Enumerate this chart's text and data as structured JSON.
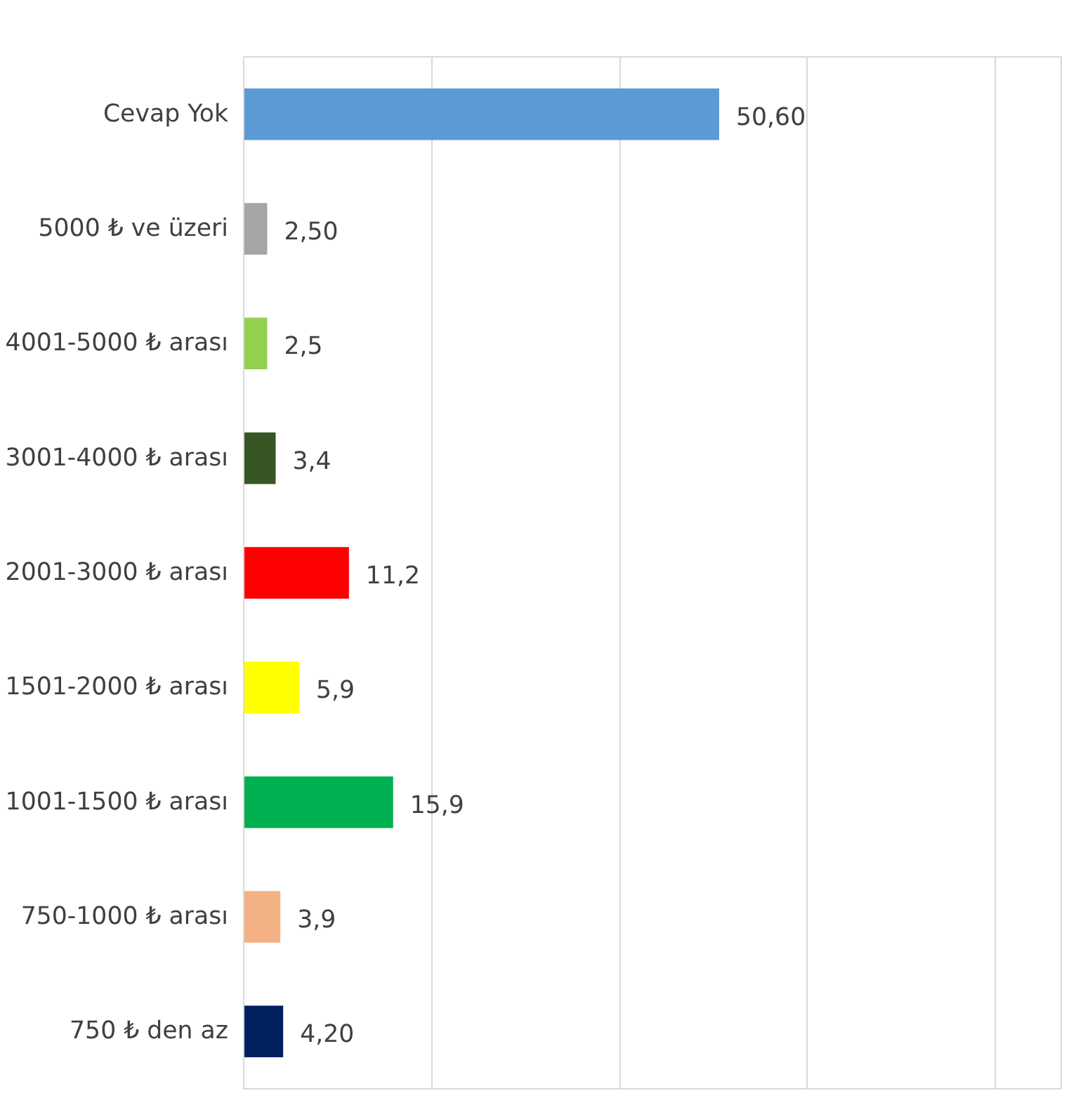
{
  "chart_data": {
    "type": "bar",
    "orientation": "horizontal",
    "categories": [
      "Cevap Yok",
      "5000 ₺ ve üzeri",
      "4001-5000 ₺ arası",
      "3001-4000 ₺ arası",
      "2001-3000 ₺ arası",
      "1501-2000 ₺ arası",
      "1001-1500 ₺ arası",
      "750-1000 ₺ arası",
      "750 ₺ den az"
    ],
    "values": [
      50.6,
      2.5,
      2.5,
      3.4,
      11.2,
      5.9,
      15.9,
      3.9,
      4.2
    ],
    "value_labels": [
      "50,60",
      "2,50",
      "2,5",
      "3,4",
      "11,2",
      "5,9",
      "15,9",
      "3,9",
      "4,20"
    ],
    "colors": [
      "#5b9bd5",
      "#a5a5a5",
      "#92d050",
      "#375623",
      "#ff0000",
      "#ffff00",
      "#00b050",
      "#f4b183",
      "#002060"
    ],
    "xlim": [
      0,
      87
    ],
    "xticks": [
      {
        "value": 0,
        "label": null
      },
      {
        "value": 20,
        "label": null
      },
      {
        "value": 40,
        "label": null
      },
      {
        "value": 60,
        "label": null
      },
      {
        "value": 80,
        "label": null
      }
    ],
    "tick_labels": "y",
    "grid": "x"
  }
}
